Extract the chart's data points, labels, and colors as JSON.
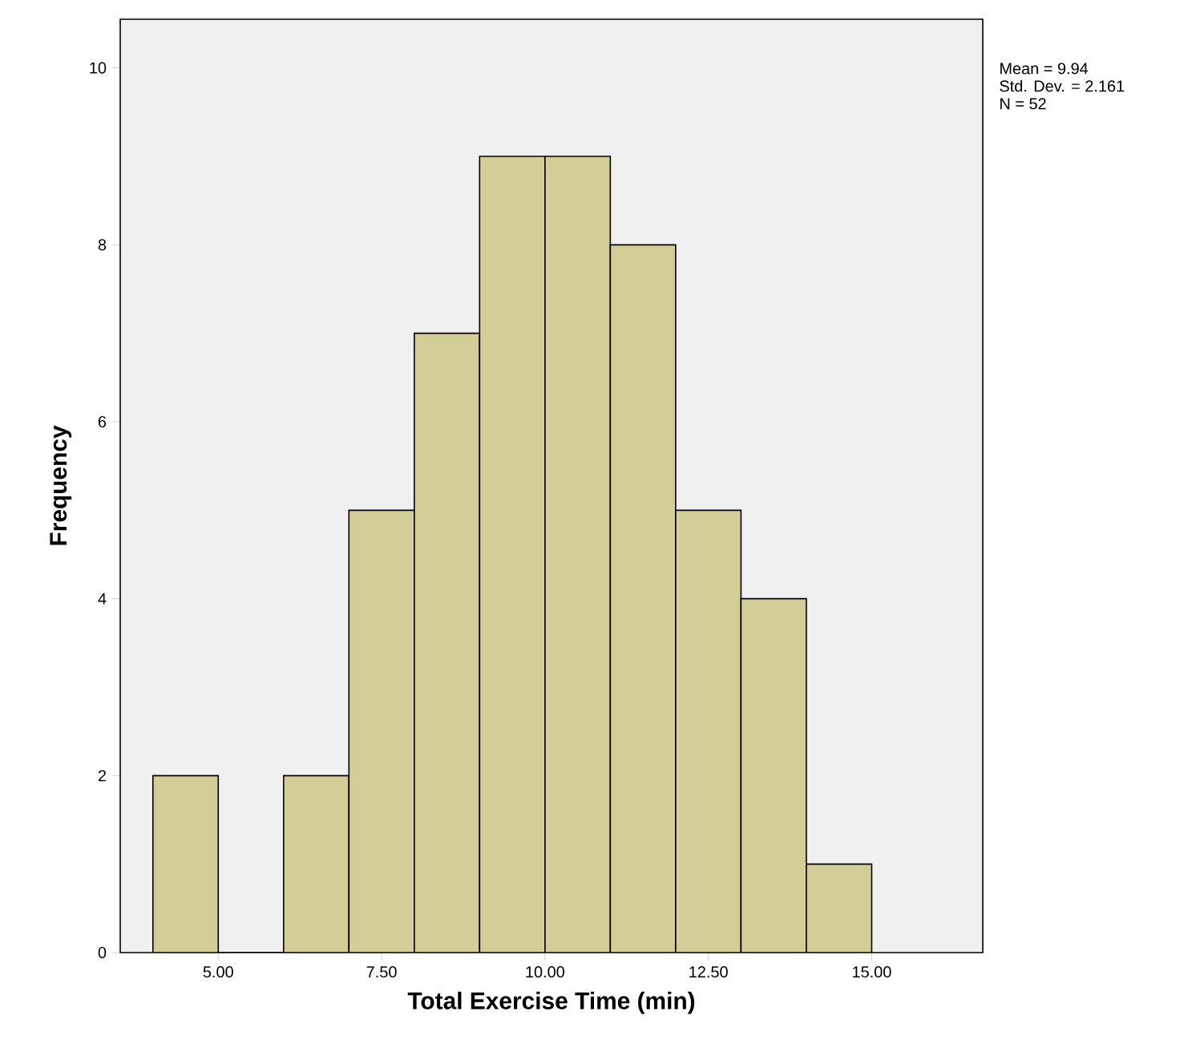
{
  "chart_data": {
    "type": "histogram",
    "xlabel": "Total Exercise Time (min)",
    "ylabel": "Frequency",
    "bins": [
      4,
      5,
      6,
      7,
      8,
      9,
      10,
      11,
      12,
      13,
      14,
      15
    ],
    "values": [
      2,
      0,
      2,
      5,
      7,
      9,
      9,
      8,
      5,
      4,
      1
    ],
    "color": "#d3ce97",
    "xlim": [
      3.5,
      16.7
    ],
    "ylim": [
      0,
      10.55
    ],
    "xticks": [
      {
        "value": 5,
        "label": "5.00"
      },
      {
        "value": 7.5,
        "label": "7.50"
      },
      {
        "value": 10,
        "label": "10.00"
      },
      {
        "value": 12.5,
        "label": "12.50"
      },
      {
        "value": 15,
        "label": "15.00"
      }
    ],
    "yticks": [
      0,
      2,
      4,
      6,
      8,
      10
    ],
    "grid": false,
    "annotations": [
      "Mean = 9.94",
      "Std. Dev. = 2.161",
      "N = 52"
    ]
  }
}
